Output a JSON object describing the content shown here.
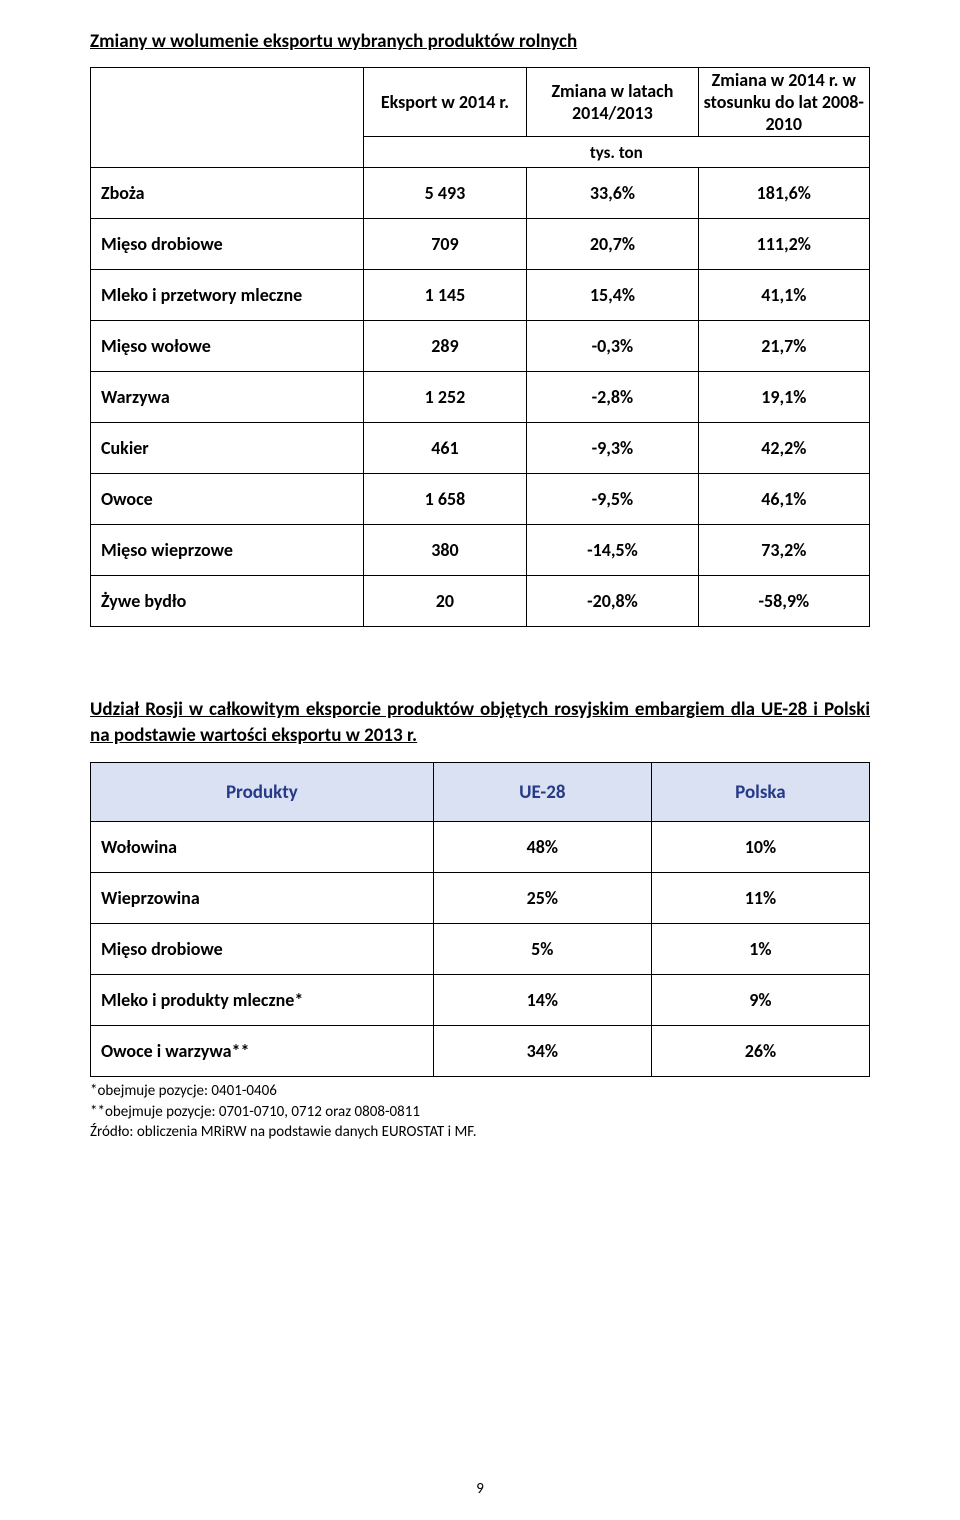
{
  "title1": "Zmiany w wolumenie eksportu wybranych produktów rolnych",
  "table1": {
    "headers": {
      "col1": "Eksport w 2014 r.",
      "col2": "Zmiana w latach 2014/2013",
      "col3": "Zmiana w 2014 r. w stosunku do lat 2008-2010",
      "unit": "tys. ton"
    },
    "rows": [
      {
        "label": "Zboża",
        "v1": "5 493",
        "v2": "33,6%",
        "v3": "181,6%"
      },
      {
        "label": "Mięso drobiowe",
        "v1": "709",
        "v2": "20,7%",
        "v3": "111,2%"
      },
      {
        "label": "Mleko i przetwory mleczne",
        "v1": "1 145",
        "v2": "15,4%",
        "v3": "41,1%"
      },
      {
        "label": "Mięso wołowe",
        "v1": "289",
        "v2": "-0,3%",
        "v3": "21,7%"
      },
      {
        "label": "Warzywa",
        "v1": "1 252",
        "v2": "-2,8%",
        "v3": "19,1%"
      },
      {
        "label": "Cukier",
        "v1": "461",
        "v2": "-9,3%",
        "v3": "42,2%"
      },
      {
        "label": "Owoce",
        "v1": "1 658",
        "v2": "-9,5%",
        "v3": "46,1%"
      },
      {
        "label": "Mięso wieprzowe",
        "v1": "380",
        "v2": "-14,5%",
        "v3": "73,2%"
      },
      {
        "label": "Żywe bydło",
        "v1": "20",
        "v2": "-20,8%",
        "v3": "-58,9%"
      }
    ]
  },
  "title2": "Udział Rosji w całkowitym eksporcie produktów objętych rosyjskim embargiem dla UE-28 i Polski na podstawie wartości eksportu w 2013 r.",
  "table2": {
    "headers": {
      "c0": "Produkty",
      "c1": "UE-28",
      "c2": "Polska"
    },
    "rows": [
      {
        "label": "Wołowina",
        "v1": "48%",
        "v2": "10%"
      },
      {
        "label": "Wieprzowina",
        "v1": "25%",
        "v2": "11%"
      },
      {
        "label": "Mięso drobiowe",
        "v1": "5%",
        "v2": "1%"
      },
      {
        "label": "Mleko i produkty mleczne*",
        "v1": "14%",
        "v2": "9%"
      },
      {
        "label": "Owoce i warzywa**",
        "v1": "34%",
        "v2": "26%"
      }
    ]
  },
  "notes": {
    "n1": "*obejmuje pozycje: 0401-0406",
    "n2": "**obejmuje pozycje: 0701-0710, 0712 oraz 0808-0811",
    "n3": "Źródło: obliczenia MRiRW na podstawie danych EUROSTAT i MF."
  },
  "pagenum": "9",
  "colors": {
    "header_bg": "#d9e1f2",
    "header_text": "#263a8a",
    "border": "#000000",
    "text": "#000000",
    "background": "#ffffff"
  }
}
